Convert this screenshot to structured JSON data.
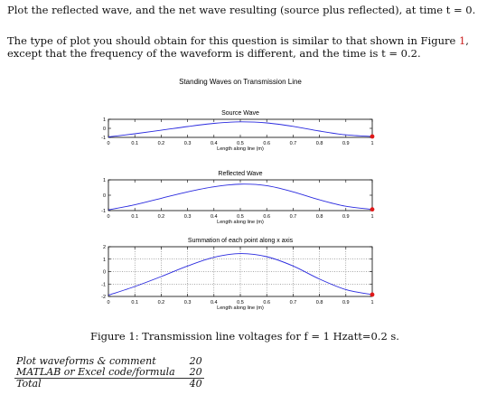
{
  "intro": {
    "line1": "Plot the reflected wave, and the net wave resulting (source plus reflected), at time t = 0.",
    "line2_a": "The type of plot you should obtain for this question is similar to that shown in Figure ",
    "figure_ref": "1",
    "line2_b": ",",
    "line3": "except that the frequency of the waveform is different, and the time is t = 0.2."
  },
  "figure": {
    "suptitle": "Standing Waves on Transmission Line",
    "caption": "Figure 1: Transmission line voltages for f = 1 Hzatt=0.2 s."
  },
  "chart_data": [
    {
      "type": "line",
      "title": "Source Wave",
      "xlabel": "Length along line (m)",
      "xlim": [
        0,
        1
      ],
      "ylim": [
        -1,
        1
      ],
      "x_ticks": [
        "0",
        "0.1",
        "0.2",
        "0.3",
        "0.4",
        "0.5",
        "0.6",
        "0.7",
        "0.8",
        "0.9",
        "1"
      ],
      "y_ticks": [
        "1",
        "0",
        "-1"
      ],
      "grid": false,
      "line_color": "#2a2adf",
      "marker_color": "#e01818",
      "series": [
        {
          "x": [
            0,
            0.1,
            0.2,
            0.3,
            0.4,
            0.5,
            0.6,
            0.7,
            0.8,
            0.9,
            1.0
          ],
          "y": [
            -0.95,
            -0.6,
            -0.21,
            0.2,
            0.55,
            0.72,
            0.6,
            0.22,
            -0.3,
            -0.72,
            -0.9
          ]
        }
      ],
      "marker": {
        "x": 1.0,
        "y": -0.9
      }
    },
    {
      "type": "line",
      "title": "Reflected Wave",
      "xlabel": "Length along line (m)",
      "xlim": [
        0,
        1
      ],
      "ylim": [
        -1,
        1
      ],
      "x_ticks": [
        "0",
        "0.1",
        "0.2",
        "0.3",
        "0.4",
        "0.5",
        "0.6",
        "0.7",
        "0.8",
        "0.9",
        "1"
      ],
      "y_ticks": [
        "1",
        "0",
        "-1"
      ],
      "grid": false,
      "line_color": "#2a2adf",
      "marker_color": "#e01818",
      "series": [
        {
          "x": [
            0,
            0.1,
            0.2,
            0.3,
            0.4,
            0.5,
            0.6,
            0.7,
            0.8,
            0.9,
            1.0
          ],
          "y": [
            -0.95,
            -0.62,
            -0.2,
            0.22,
            0.55,
            0.72,
            0.62,
            0.22,
            -0.3,
            -0.72,
            -0.92
          ]
        }
      ],
      "marker": {
        "x": 1.0,
        "y": -0.92
      }
    },
    {
      "type": "line",
      "title": "Summation of each point along x axis",
      "xlabel": "Length along line (m)",
      "xlim": [
        0,
        1
      ],
      "ylim": [
        -2,
        2
      ],
      "x_ticks": [
        "0",
        "0.1",
        "0.2",
        "0.3",
        "0.4",
        "0.5",
        "0.6",
        "0.7",
        "0.8",
        "0.9",
        "1"
      ],
      "y_ticks": [
        "2",
        "1",
        "0",
        "-1",
        "-2"
      ],
      "grid": true,
      "line_color": "#2a2adf",
      "marker_color": "#e01818",
      "series": [
        {
          "x": [
            0,
            0.1,
            0.2,
            0.3,
            0.4,
            0.5,
            0.6,
            0.7,
            0.8,
            0.9,
            1.0
          ],
          "y": [
            -1.9,
            -1.2,
            -0.4,
            0.45,
            1.15,
            1.45,
            1.2,
            0.45,
            -0.6,
            -1.45,
            -1.85
          ]
        }
      ],
      "marker": {
        "x": 1.0,
        "y": -1.85
      }
    }
  ],
  "score_table": [
    {
      "label": "Plot waveforms & comment",
      "points": "20"
    },
    {
      "label": "MATLAB or Excel code/formula",
      "points": "20"
    },
    {
      "label": "Total",
      "points": "40"
    }
  ]
}
